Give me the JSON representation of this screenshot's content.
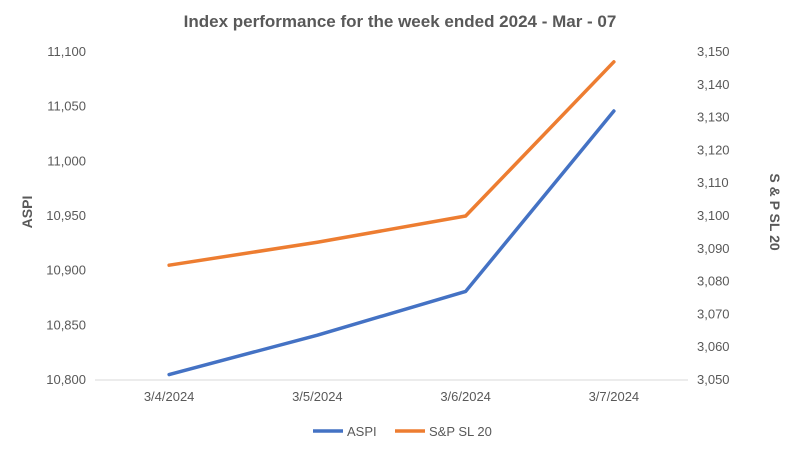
{
  "chart_data": {
    "type": "line",
    "title": "Index performance for the week ended 2024 - Mar - 07",
    "xlabel": "",
    "categories": [
      "3/4/2024",
      "3/5/2024",
      "3/6/2024",
      "3/7/2024"
    ],
    "series": [
      {
        "name": "ASPI",
        "axis": "left",
        "color": "#4472C4",
        "values": [
          10805,
          10841,
          10881,
          11046
        ]
      },
      {
        "name": "S&P SL 20",
        "axis": "right",
        "color": "#ED7D31",
        "values": [
          3085,
          3092,
          3100,
          3147
        ]
      }
    ],
    "y_left": {
      "label": "ASPI",
      "range": [
        10800,
        11100
      ],
      "ticks": [
        "10,800",
        "10,850",
        "10,900",
        "10,950",
        "11,000",
        "11,050",
        "11,100"
      ]
    },
    "y_right": {
      "label": "S & P SL 20",
      "range": [
        3050,
        3150
      ],
      "ticks": [
        "3,050",
        "3,060",
        "3,070",
        "3,080",
        "3,090",
        "3,100",
        "3,110",
        "3,120",
        "3,130",
        "3,140",
        "3,150"
      ]
    },
    "grid": false,
    "legend_position": "bottom"
  }
}
